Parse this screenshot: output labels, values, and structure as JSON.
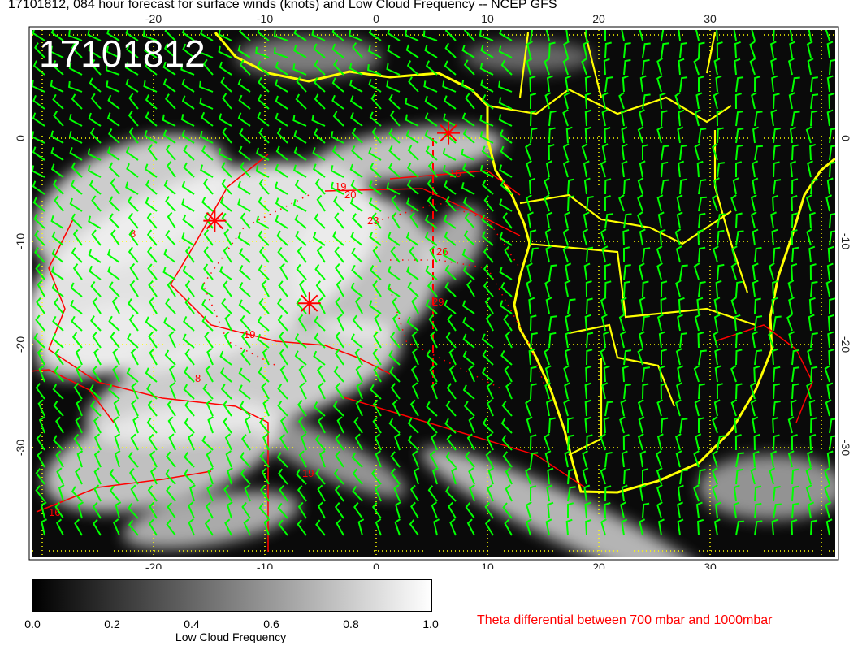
{
  "title": "17101812, 084 hour forecast for surface winds (knots) and Low Cloud Frequency -- NCEP GFS",
  "map": {
    "stamp": "17101812",
    "lon_ticks": [
      "-20",
      "-10",
      "0",
      "10",
      "20",
      "30"
    ],
    "lat_ticks": [
      "0",
      "-10",
      "-20",
      "-30"
    ],
    "extent": {
      "lon": [
        -31,
        41
      ],
      "lat": [
        10.5,
        -40.5
      ]
    },
    "contour_labels": [
      "16",
      "19",
      "20",
      "23",
      "26",
      "29",
      "19",
      "19",
      "16",
      "8",
      "8"
    ],
    "markers": [
      {
        "lon": 6.5,
        "lat": 0.5
      },
      {
        "lon": -14.5,
        "lat": -8
      },
      {
        "lon": -6,
        "lat": -16
      }
    ],
    "colors": {
      "coast": "#ffff00",
      "wind": "#00ff00",
      "contour": "#ff0000",
      "grid": "#ffff00"
    }
  },
  "colorbar": {
    "labels": [
      "0.0",
      "0.2",
      "0.4",
      "0.6",
      "0.8",
      "1.0"
    ],
    "title": "Low Cloud Frequency"
  },
  "contour_legend": "Theta differential between 700 mbar and 1000mbar"
}
